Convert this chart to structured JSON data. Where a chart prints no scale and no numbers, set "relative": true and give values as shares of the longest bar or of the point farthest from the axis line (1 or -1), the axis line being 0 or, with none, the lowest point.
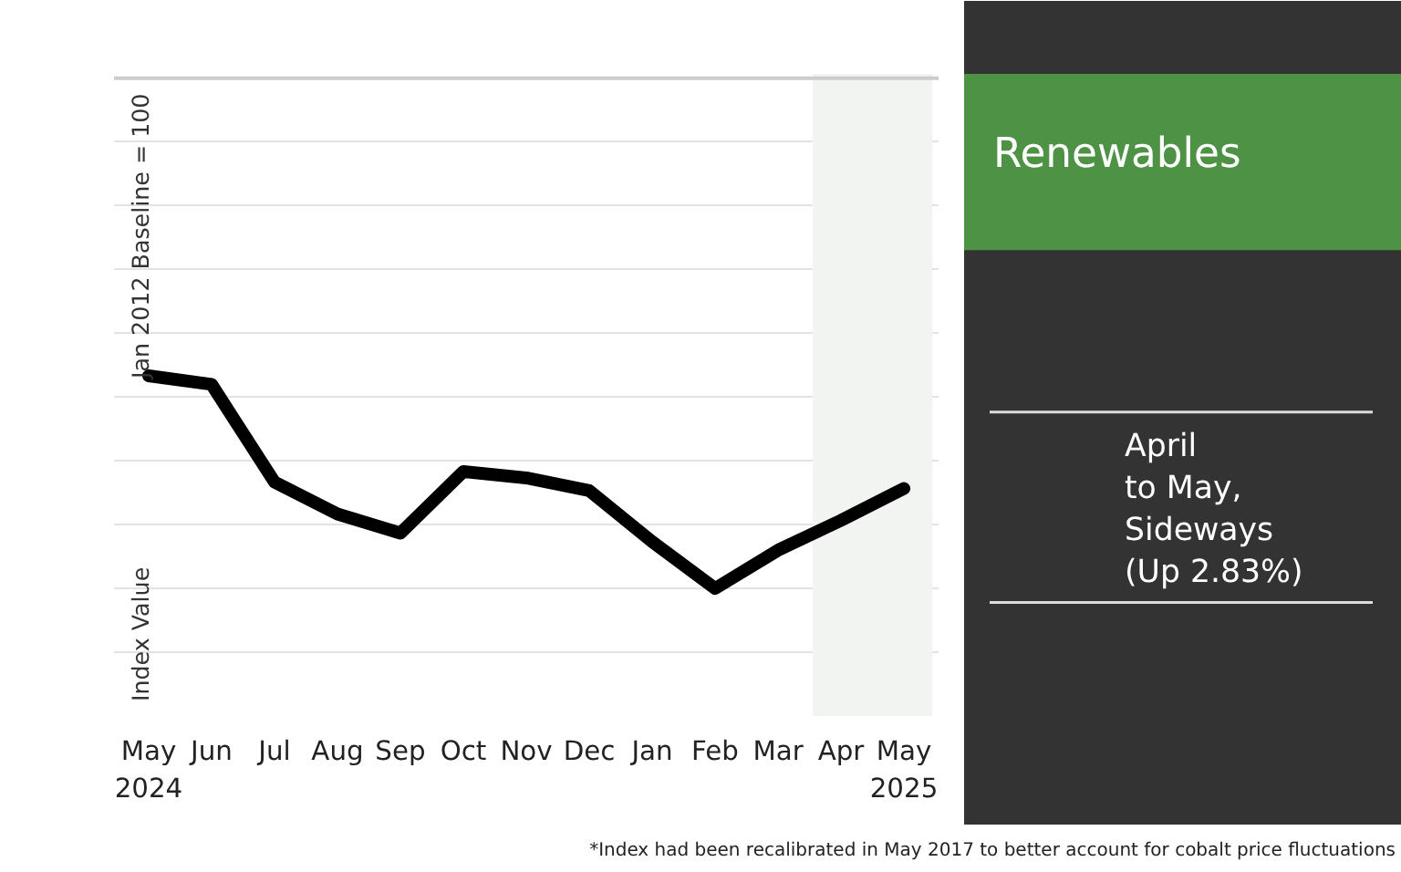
{
  "chart_data": {
    "type": "line",
    "title": "Renewables",
    "ylabel": "Index Value",
    "categories": [
      "May\n2024",
      "Jun",
      "Jul",
      "Aug",
      "Sep",
      "Oct",
      "Nov",
      "Dec",
      "Jan",
      "Feb",
      "Mar",
      "Apr",
      "May\n2025"
    ],
    "series": [
      {
        "color": "#000000",
        "values": [
          1.0,
          0.96,
          0.5,
          0.35,
          0.26,
          0.55,
          0.52,
          0.46,
          0.22,
          0,
          0.18,
          0.32,
          0.47
        ]
      }
    ],
    "relative": true,
    "grid": "y",
    "marker": "none",
    "line_style": "solid",
    "bands": [
      {
        "axis": "x",
        "from": "Apr",
        "to": "May\n2025",
        "color": "#f2f4f2"
      }
    ],
    "annotations": [
      "Jan 2012 Baseline = 100",
      "April\nto May,\nSideways\n(Up 2.83%)",
      "*Index had been recalibrated in May 2017 to better account for cobalt price fluctuations"
    ]
  }
}
